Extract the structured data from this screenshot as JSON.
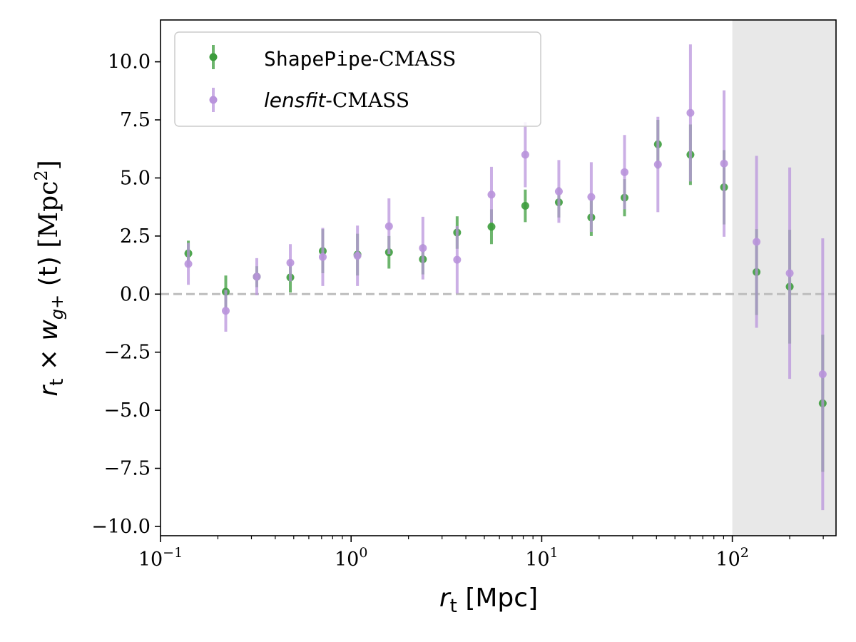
{
  "chart_data": {
    "type": "scatter",
    "title": "",
    "xlabel": "r_t [Mpc]",
    "ylabel": "r_t × w_g+ (t) [Mpc^2]",
    "xscale": "log",
    "xlim": [
      0.1,
      350
    ],
    "ylim": [
      -10.4,
      11.8
    ],
    "yticks": [
      -10.0,
      -7.5,
      -5.0,
      -2.5,
      0.0,
      2.5,
      5.0,
      7.5,
      10.0
    ],
    "ytick_labels": [
      "−10.0",
      "−7.5",
      "−5.0",
      "−2.5",
      "0.0",
      "2.5",
      "5.0",
      "7.5",
      "10.0"
    ],
    "xticks": [
      0.1,
      1,
      10,
      100
    ],
    "xtick_labels": [
      {
        "base": "10",
        "exp": "−1"
      },
      {
        "base": "10",
        "exp": "0"
      },
      {
        "base": "10",
        "exp": "1"
      },
      {
        "base": "10",
        "exp": "2"
      }
    ],
    "axis_label_parts": {
      "x": {
        "r": "r",
        "sub": "t",
        "rest": " [Mpc]"
      },
      "y": {
        "r": "r",
        "sub": "t",
        "times": " × ",
        "w": "w",
        "wsub": "g+",
        "paren": " (t) ",
        "unit": "[Mpc",
        "sup": "2",
        "close": "]"
      }
    },
    "reference_line": {
      "y": 0.0,
      "style": "dashed",
      "color": "#bdbdbd"
    },
    "shaded_region": {
      "x_from": 100,
      "x_to": 350,
      "color": "#e8e8e8"
    },
    "legend_placement": "top-left",
    "series": [
      {
        "name": "ShapePipe-CMASS",
        "legend_main": "ShapePipe",
        "legend_suffix": "-CMASS",
        "color": "#3c9c3c",
        "x": [
          0.14,
          0.22,
          0.32,
          0.48,
          0.71,
          1.08,
          1.58,
          2.38,
          3.6,
          5.45,
          8.2,
          12.3,
          18.2,
          27.2,
          40.7,
          60.3,
          90.5,
          134,
          200,
          298
        ],
        "y": [
          1.75,
          0.1,
          0.75,
          0.72,
          1.85,
          1.7,
          1.8,
          1.5,
          2.65,
          2.9,
          3.8,
          3.95,
          3.3,
          4.15,
          6.45,
          6.0,
          4.6,
          0.95,
          0.32,
          -4.7
        ],
        "yerr": [
          0.55,
          0.7,
          0.45,
          0.65,
          0.95,
          0.9,
          0.7,
          0.65,
          0.7,
          0.75,
          0.7,
          0.65,
          0.8,
          0.8,
          1.05,
          1.3,
          1.6,
          1.85,
          2.45,
          2.95
        ]
      },
      {
        "name": "lensfit-CMASS",
        "legend_main": "lensfit",
        "legend_suffix": "-CMASS",
        "color": "#b994dc",
        "x": [
          0.14,
          0.22,
          0.32,
          0.48,
          0.71,
          1.08,
          1.58,
          2.38,
          3.6,
          5.45,
          8.2,
          12.3,
          18.2,
          27.2,
          40.7,
          60.3,
          90.5,
          134,
          200,
          298
        ],
        "y": [
          1.3,
          -0.72,
          0.75,
          1.35,
          1.6,
          1.65,
          2.92,
          1.98,
          1.48,
          4.28,
          6.0,
          4.42,
          4.18,
          5.25,
          5.58,
          7.8,
          5.62,
          2.25,
          0.9,
          -3.45
        ],
        "yerr": [
          0.9,
          0.9,
          0.8,
          0.8,
          1.25,
          1.3,
          1.2,
          1.35,
          1.45,
          1.2,
          1.4,
          1.35,
          1.5,
          1.6,
          2.05,
          2.95,
          3.15,
          3.7,
          4.55,
          5.85
        ]
      }
    ]
  }
}
